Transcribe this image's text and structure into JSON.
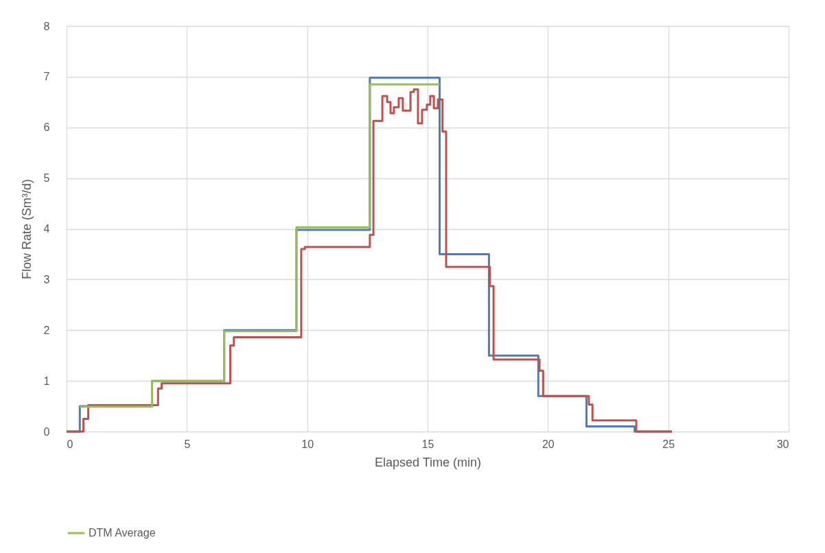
{
  "chart_data": {
    "type": "line",
    "xlabel": "Elapsed Time (min)",
    "ylabel": "Flow Rate (Sm³/d)",
    "xlim": [
      0,
      30
    ],
    "xticks": [
      0,
      5,
      10,
      15,
      20,
      25,
      30
    ],
    "ylim": [
      0,
      8
    ],
    "yticks": [
      0,
      1,
      2,
      3,
      4,
      5,
      6,
      7,
      8
    ],
    "grid": true,
    "legend": "bottom",
    "line_style": "solid",
    "series": [
      {
        "color": "#4a7ebb",
        "x": [
          0,
          0.55,
          0.55,
          3.55,
          3.55,
          6.55,
          6.55,
          9.55,
          9.55,
          12.6,
          12.6,
          15.5,
          15.5,
          17.55,
          17.55,
          19.6,
          19.6,
          21.6,
          21.6,
          23.6,
          23.6,
          25.15
        ],
        "values": [
          0,
          0,
          0.5,
          0.5,
          1.0,
          1.0,
          2.0,
          2.0,
          3.98,
          3.98,
          6.98,
          6.98,
          3.5,
          3.5,
          1.5,
          1.5,
          0.7,
          0.7,
          0.1,
          0.1,
          0,
          0
        ]
      },
      {
        "color": "#c0504d",
        "x": [
          0,
          0.7,
          0.7,
          0.9,
          0.9,
          3.8,
          3.8,
          3.95,
          3.95,
          6.8,
          6.8,
          6.95,
          6.95,
          9.75,
          9.75,
          9.9,
          9.9,
          12.6,
          12.6,
          12.75,
          12.75,
          13.12,
          13.12,
          13.32,
          13.32,
          13.46,
          13.46,
          13.6,
          13.6,
          13.8,
          13.8,
          13.97,
          13.97,
          14.29,
          14.29,
          14.43,
          14.43,
          14.6,
          14.6,
          14.77,
          14.77,
          14.97,
          14.97,
          15.11,
          15.11,
          15.26,
          15.26,
          15.43,
          15.43,
          15.62,
          15.62,
          15.77,
          15.77,
          17.59,
          17.59,
          17.74,
          17.74,
          19.65,
          19.65,
          19.8,
          19.8,
          21.7,
          21.7,
          21.85,
          21.85,
          23.67,
          23.67,
          25.15
        ],
        "values": [
          0,
          0,
          0.25,
          0.25,
          0.52,
          0.52,
          0.85,
          0.85,
          0.95,
          0.95,
          1.7,
          1.7,
          1.86,
          1.86,
          3.6,
          3.6,
          3.64,
          3.64,
          3.88,
          3.88,
          6.13,
          6.13,
          6.62,
          6.62,
          6.5,
          6.5,
          6.28,
          6.28,
          6.4,
          6.4,
          6.58,
          6.58,
          6.33,
          6.33,
          6.7,
          6.7,
          6.75,
          6.75,
          6.08,
          6.08,
          6.35,
          6.35,
          6.45,
          6.45,
          6.62,
          6.62,
          6.38,
          6.38,
          6.55,
          6.55,
          5.92,
          5.92,
          3.25,
          3.25,
          2.87,
          2.87,
          1.42,
          1.42,
          1.2,
          1.2,
          0.7,
          0.7,
          0.53,
          0.53,
          0.22,
          0.22,
          0,
          0
        ]
      },
      {
        "name": "DTM Average",
        "color": "#9bbb59",
        "x": [
          0.55,
          3.55,
          3.55,
          6.55,
          6.55,
          9.55,
          9.55,
          12.6,
          12.6,
          15.5
        ],
        "values": [
          0.49,
          0.49,
          1.0,
          1.0,
          1.98,
          1.98,
          4.03,
          4.03,
          6.85,
          6.85
        ]
      }
    ]
  }
}
